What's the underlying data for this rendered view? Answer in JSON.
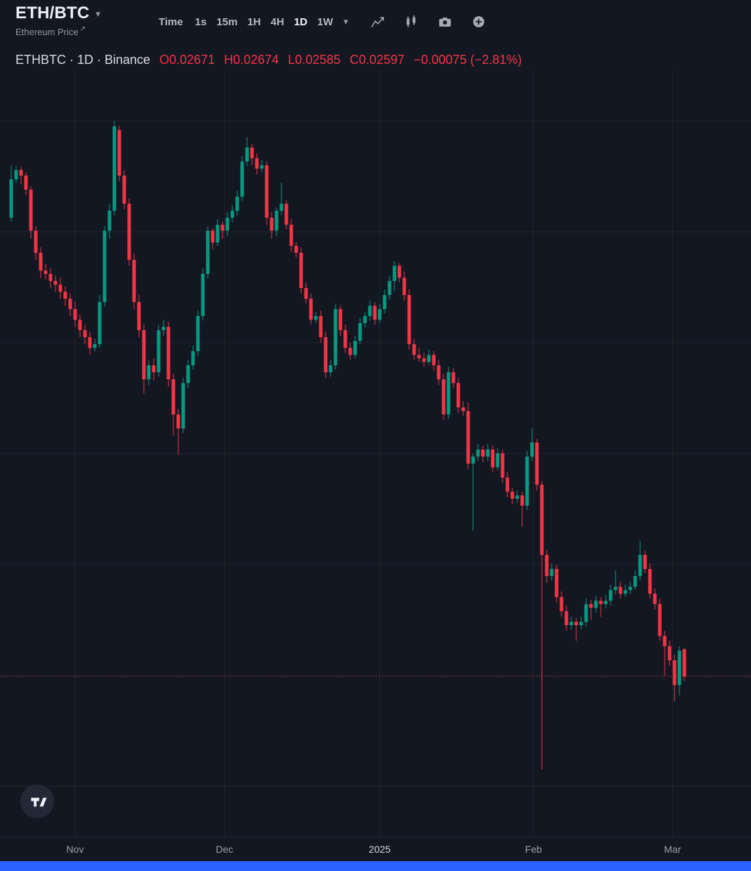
{
  "header": {
    "symbol": "ETH/BTC",
    "dropdown_caret": "▾",
    "subtitle": "Ethereum Price",
    "external_link_arrow": "↗"
  },
  "toolbar": {
    "time_label": "Time",
    "intervals": [
      "1s",
      "15m",
      "1H",
      "4H",
      "1D",
      "1W"
    ],
    "active_interval": "1D",
    "more_caret": "▾",
    "icons": [
      "line-chart-icon",
      "indicators-icon",
      "camera-icon",
      "compare-add-icon"
    ]
  },
  "legend": {
    "series": "ETHBTC · 1D · Binance",
    "values": [
      "O0.02671",
      "H0.02674",
      "L0.02585",
      "C0.02597",
      "−0.00075 (−2.81%)"
    ]
  },
  "time_axis_labels": [
    "Nov",
    "Dec",
    "2025",
    "Feb",
    "Mar"
  ],
  "chart_data": {
    "type": "candlestick",
    "symbol": "ETHBTC",
    "interval": "1D",
    "exchange": "Binance",
    "up_color": "#089981",
    "down_color": "#f23645",
    "grid_color": "rgba(250,250,253,0.06)",
    "ylim": [
      0.02166,
      0.04218
    ],
    "h_gridlines": [
      0.041,
      0.038,
      0.035,
      0.032,
      0.029,
      0.026,
      0.023
    ],
    "price_line": 0.02597,
    "last": {
      "open": 0.02671,
      "high": 0.02674,
      "low": 0.02585,
      "close": 0.02597,
      "change": -0.00075,
      "change_pct": -2.81
    },
    "x_axis": [
      {
        "label": "Nov",
        "index": 13
      },
      {
        "label": "Dec",
        "index": 43.4
      },
      {
        "label": "2025",
        "index": 75
      },
      {
        "label": "Feb",
        "index": 106.3
      },
      {
        "label": "Mar",
        "index": 134.6
      }
    ],
    "candles": [
      [
        0.03838,
        0.0398,
        0.03828,
        0.03942
      ],
      [
        0.03942,
        0.03978,
        0.03933,
        0.03967
      ],
      [
        0.03967,
        0.03976,
        0.03929,
        0.03952
      ],
      [
        0.03952,
        0.03961,
        0.03899,
        0.03914
      ],
      [
        0.03914,
        0.03923,
        0.03781,
        0.03803
      ],
      [
        0.03803,
        0.03815,
        0.03724,
        0.03743
      ],
      [
        0.03743,
        0.03758,
        0.03676,
        0.03695
      ],
      [
        0.03695,
        0.03714,
        0.03671,
        0.03686
      ],
      [
        0.03686,
        0.03701,
        0.03648,
        0.03667
      ],
      [
        0.03667,
        0.03682,
        0.03638,
        0.03657
      ],
      [
        0.03657,
        0.03676,
        0.03619,
        0.03638
      ],
      [
        0.03638,
        0.03652,
        0.036,
        0.03619
      ],
      [
        0.03619,
        0.03633,
        0.03572,
        0.03591
      ],
      [
        0.03591,
        0.0361,
        0.03543,
        0.03562
      ],
      [
        0.03562,
        0.03576,
        0.03515,
        0.03534
      ],
      [
        0.03534,
        0.03549,
        0.03496,
        0.03515
      ],
      [
        0.03515,
        0.0353,
        0.03467,
        0.03486
      ],
      [
        0.03486,
        0.03511,
        0.03477,
        0.03496
      ],
      [
        0.03496,
        0.03629,
        0.03486,
        0.0361
      ],
      [
        0.0361,
        0.03815,
        0.03598,
        0.03803
      ],
      [
        0.03803,
        0.03876,
        0.03781,
        0.03857
      ],
      [
        0.03857,
        0.041,
        0.03845,
        0.04085
      ],
      [
        0.04075,
        0.04087,
        0.03935,
        0.03952
      ],
      [
        0.03952,
        0.03967,
        0.03861,
        0.03876
      ],
      [
        0.03876,
        0.03891,
        0.03708,
        0.03724
      ],
      [
        0.03724,
        0.03741,
        0.03591,
        0.0361
      ],
      [
        0.0361,
        0.03629,
        0.03515,
        0.03534
      ],
      [
        0.03534,
        0.03549,
        0.03363,
        0.03401
      ],
      [
        0.03401,
        0.03454,
        0.03386,
        0.03439
      ],
      [
        0.03439,
        0.03458,
        0.03399,
        0.0342
      ],
      [
        0.0342,
        0.03549,
        0.03408,
        0.03534
      ],
      [
        0.03534,
        0.03562,
        0.03519,
        0.03543
      ],
      [
        0.03543,
        0.03557,
        0.03382,
        0.03401
      ],
      [
        0.03401,
        0.03416,
        0.03249,
        0.03306
      ],
      [
        0.03306,
        0.03321,
        0.03196,
        0.03268
      ],
      [
        0.03268,
        0.03405,
        0.03256,
        0.03391
      ],
      [
        0.03391,
        0.03454,
        0.03378,
        0.03439
      ],
      [
        0.03439,
        0.03492,
        0.03427,
        0.03477
      ],
      [
        0.03477,
        0.03587,
        0.03465,
        0.03572
      ],
      [
        0.03572,
        0.03701,
        0.0356,
        0.03686
      ],
      [
        0.03686,
        0.03815,
        0.03674,
        0.03803
      ],
      [
        0.03803,
        0.03809,
        0.03752,
        0.03771
      ],
      [
        0.03771,
        0.03834,
        0.03762,
        0.03819
      ],
      [
        0.03819,
        0.03828,
        0.03781,
        0.03803
      ],
      [
        0.03803,
        0.03853,
        0.03788,
        0.03838
      ],
      [
        0.03838,
        0.03872,
        0.03826,
        0.03857
      ],
      [
        0.03857,
        0.03911,
        0.03845,
        0.03895
      ],
      [
        0.03895,
        0.04005,
        0.03883,
        0.0399
      ],
      [
        0.0399,
        0.04056,
        0.03978,
        0.04028
      ],
      [
        0.04028,
        0.04037,
        0.0398,
        0.03999
      ],
      [
        0.03999,
        0.04013,
        0.03956,
        0.03971
      ],
      [
        0.03971,
        0.03994,
        0.03961,
        0.0398
      ],
      [
        0.0398,
        0.0399,
        0.03819,
        0.03838
      ],
      [
        0.03838,
        0.03853,
        0.03781,
        0.03803
      ],
      [
        0.03803,
        0.03866,
        0.03788,
        0.03857
      ],
      [
        0.03857,
        0.03933,
        0.03845,
        0.03876
      ],
      [
        0.03876,
        0.03885,
        0.03807,
        0.03819
      ],
      [
        0.03819,
        0.03834,
        0.03745,
        0.03762
      ],
      [
        0.03762,
        0.03773,
        0.03731,
        0.03743
      ],
      [
        0.03743,
        0.03758,
        0.03633,
        0.03648
      ],
      [
        0.03648,
        0.03663,
        0.03606,
        0.03619
      ],
      [
        0.03619,
        0.03633,
        0.03549,
        0.03562
      ],
      [
        0.03562,
        0.03583,
        0.03553,
        0.03572
      ],
      [
        0.03572,
        0.03587,
        0.035,
        0.03515
      ],
      [
        0.03515,
        0.0353,
        0.03405,
        0.0342
      ],
      [
        0.0342,
        0.03454,
        0.03408,
        0.03439
      ],
      [
        0.03439,
        0.03606,
        0.03427,
        0.03591
      ],
      [
        0.03591,
        0.036,
        0.03519,
        0.03534
      ],
      [
        0.03534,
        0.03549,
        0.03473,
        0.03486
      ],
      [
        0.03486,
        0.035,
        0.03454,
        0.03467
      ],
      [
        0.03467,
        0.03519,
        0.03458,
        0.03505
      ],
      [
        0.03505,
        0.03568,
        0.03496,
        0.03553
      ],
      [
        0.03553,
        0.03583,
        0.03541,
        0.03572
      ],
      [
        0.03572,
        0.03614,
        0.0356,
        0.036
      ],
      [
        0.036,
        0.0361,
        0.03549,
        0.03562
      ],
      [
        0.03562,
        0.03606,
        0.03553,
        0.03591
      ],
      [
        0.03591,
        0.03644,
        0.03579,
        0.03629
      ],
      [
        0.03629,
        0.03682,
        0.03617,
        0.03667
      ],
      [
        0.03667,
        0.03721,
        0.03639,
        0.03708
      ],
      [
        0.03708,
        0.03716,
        0.03663,
        0.03676
      ],
      [
        0.03676,
        0.03693,
        0.03614,
        0.03629
      ],
      [
        0.03629,
        0.03644,
        0.03481,
        0.03496
      ],
      [
        0.03496,
        0.03511,
        0.03454,
        0.03467
      ],
      [
        0.03467,
        0.03486,
        0.03448,
        0.03458
      ],
      [
        0.03458,
        0.03473,
        0.03435,
        0.03448
      ],
      [
        0.03448,
        0.03481,
        0.03439,
        0.03467
      ],
      [
        0.03467,
        0.03477,
        0.03424,
        0.03439
      ],
      [
        0.03439,
        0.03454,
        0.03386,
        0.03401
      ],
      [
        0.03401,
        0.03416,
        0.03291,
        0.03306
      ],
      [
        0.03306,
        0.03435,
        0.03294,
        0.0342
      ],
      [
        0.0342,
        0.03431,
        0.03378,
        0.03391
      ],
      [
        0.03391,
        0.03405,
        0.0331,
        0.03325
      ],
      [
        0.03325,
        0.03342,
        0.03302,
        0.03315
      ],
      [
        0.03315,
        0.03339,
        0.03158,
        0.03173
      ],
      [
        0.03173,
        0.03201,
        0.02992,
        0.03192
      ],
      [
        0.03192,
        0.03226,
        0.0318,
        0.03211
      ],
      [
        0.03211,
        0.03222,
        0.03177,
        0.03192
      ],
      [
        0.03192,
        0.03226,
        0.0318,
        0.03211
      ],
      [
        0.03211,
        0.03222,
        0.0315,
        0.03163
      ],
      [
        0.03163,
        0.03215,
        0.03154,
        0.03201
      ],
      [
        0.03201,
        0.03211,
        0.0312,
        0.03135
      ],
      [
        0.03135,
        0.0315,
        0.03082,
        0.03097
      ],
      [
        0.03097,
        0.03108,
        0.03063,
        0.03078
      ],
      [
        0.03078,
        0.03101,
        0.03066,
        0.03087
      ],
      [
        0.03087,
        0.03097,
        0.03002,
        0.03059
      ],
      [
        0.03059,
        0.03207,
        0.03047,
        0.03192
      ],
      [
        0.03192,
        0.03268,
        0.0318,
        0.0323
      ],
      [
        0.0323,
        0.03239,
        0.03101,
        0.03116
      ],
      [
        0.03116,
        0.03125,
        0.02346,
        0.02926
      ],
      [
        0.02926,
        0.02941,
        0.0285,
        0.02869
      ],
      [
        0.02869,
        0.02903,
        0.02857,
        0.02888
      ],
      [
        0.02888,
        0.02899,
        0.02797,
        0.02812
      ],
      [
        0.02812,
        0.02827,
        0.02759,
        0.02774
      ],
      [
        0.02774,
        0.02789,
        0.02721,
        0.02736
      ],
      [
        0.02736,
        0.02759,
        0.02724,
        0.02745
      ],
      [
        0.02745,
        0.02755,
        0.02694,
        0.02736
      ],
      [
        0.02736,
        0.02759,
        0.02724,
        0.02745
      ],
      [
        0.02745,
        0.02808,
        0.02732,
        0.02793
      ],
      [
        0.02793,
        0.02804,
        0.02751,
        0.02783
      ],
      [
        0.02783,
        0.02816,
        0.0277,
        0.02802
      ],
      [
        0.02802,
        0.02812,
        0.02759,
        0.02793
      ],
      [
        0.02793,
        0.02819,
        0.02781,
        0.02802
      ],
      [
        0.02802,
        0.02846,
        0.02789,
        0.02831
      ],
      [
        0.02831,
        0.02884,
        0.02819,
        0.0284
      ],
      [
        0.0284,
        0.02854,
        0.02808,
        0.02821
      ],
      [
        0.02821,
        0.02846,
        0.02812,
        0.02831
      ],
      [
        0.02831,
        0.02854,
        0.02819,
        0.0284
      ],
      [
        0.0284,
        0.02884,
        0.02831,
        0.02869
      ],
      [
        0.02869,
        0.02964,
        0.02857,
        0.02926
      ],
      [
        0.02926,
        0.02937,
        0.02876,
        0.02888
      ],
      [
        0.02888,
        0.02903,
        0.02808,
        0.02821
      ],
      [
        0.02821,
        0.02835,
        0.02778,
        0.02793
      ],
      [
        0.02793,
        0.02808,
        0.02694,
        0.02707
      ],
      [
        0.02707,
        0.02721,
        0.02599,
        0.02679
      ],
      [
        0.02679,
        0.02694,
        0.02626,
        0.02641
      ],
      [
        0.02641,
        0.02656,
        0.02531,
        0.02574
      ],
      [
        0.02574,
        0.02679,
        0.02546,
        0.02667
      ],
      [
        0.02671,
        0.02674,
        0.02585,
        0.02597
      ]
    ]
  }
}
